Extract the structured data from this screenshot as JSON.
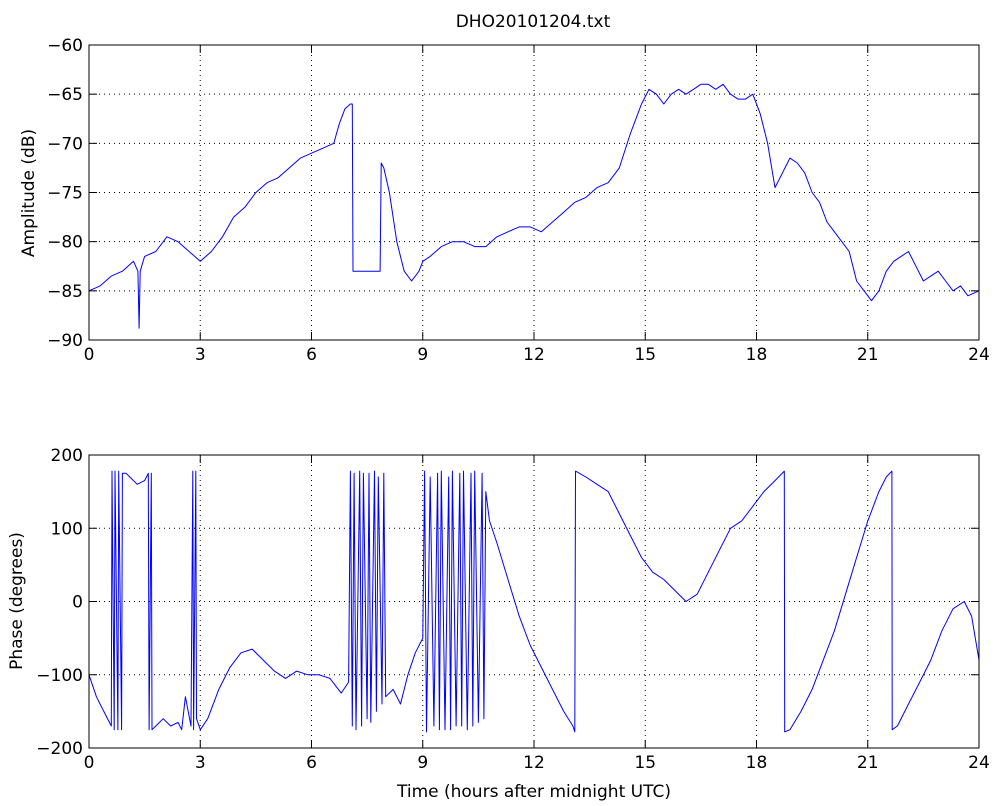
{
  "figure": {
    "title": "DHO20101204.txt",
    "colors": {
      "trace": "#0000ff",
      "axes": "#000000",
      "background": "#ffffff"
    }
  },
  "chart_data": [
    {
      "type": "line",
      "title": "DHO20101204.txt",
      "xlabel": "",
      "ylabel": "Amplitude (dB)",
      "xlim": [
        0,
        24
      ],
      "ylim": [
        -90,
        -60
      ],
      "xticks": [
        0,
        3,
        6,
        9,
        12,
        15,
        18,
        21,
        24
      ],
      "yticks": [
        -90,
        -85,
        -80,
        -75,
        -70,
        -65,
        -60
      ],
      "grid": true,
      "series": [
        {
          "color": "#0000ff",
          "x": [
            0,
            0.3,
            0.6,
            0.9,
            1.2,
            1.32,
            1.35,
            1.38,
            1.5,
            1.8,
            2.1,
            2.4,
            2.7,
            3.0,
            3.3,
            3.6,
            3.9,
            4.2,
            4.5,
            4.8,
            5.1,
            5.4,
            5.7,
            6.0,
            6.3,
            6.6,
            6.75,
            6.9,
            7.05,
            7.1,
            7.12,
            7.3,
            7.6,
            7.85,
            7.88,
            7.95,
            8.1,
            8.3,
            8.5,
            8.7,
            8.9,
            9.0,
            9.2,
            9.5,
            9.8,
            10.1,
            10.4,
            10.7,
            11.0,
            11.3,
            11.6,
            11.9,
            12.2,
            12.5,
            12.8,
            13.1,
            13.4,
            13.7,
            14.0,
            14.3,
            14.6,
            14.9,
            15.1,
            15.3,
            15.5,
            15.7,
            15.9,
            16.1,
            16.3,
            16.5,
            16.7,
            16.9,
            17.1,
            17.3,
            17.5,
            17.7,
            17.9,
            18.1,
            18.3,
            18.5,
            18.7,
            18.9,
            19.1,
            19.3,
            19.5,
            19.7,
            19.9,
            20.1,
            20.3,
            20.5,
            20.7,
            20.9,
            21.1,
            21.3,
            21.5,
            21.7,
            21.9,
            22.1,
            22.3,
            22.5,
            22.7,
            22.9,
            23.1,
            23.3,
            23.5,
            23.7,
            24.0
          ],
          "values": [
            -85,
            -84.5,
            -83.5,
            -83,
            -82,
            -83,
            -88.8,
            -83,
            -81.5,
            -81,
            -79.5,
            -80,
            -81,
            -82,
            -81,
            -79.5,
            -77.5,
            -76.5,
            -75,
            -74,
            -73.5,
            -72.5,
            -71.5,
            -71,
            -70.5,
            -70,
            -68,
            -66.5,
            -66,
            -66,
            -83,
            -83,
            -83,
            -83,
            -72,
            -72.5,
            -75,
            -80,
            -83,
            -84,
            -83,
            -82,
            -81.5,
            -80.5,
            -80,
            -80,
            -80.5,
            -80.5,
            -79.5,
            -79,
            -78.5,
            -78.5,
            -79,
            -78,
            -77,
            -76,
            -75.5,
            -74.5,
            -74,
            -72.5,
            -69,
            -66,
            -64.5,
            -65,
            -66,
            -65,
            -64.5,
            -65,
            -64.5,
            -64,
            -64,
            -64.5,
            -64,
            -65,
            -65.5,
            -65.5,
            -65,
            -67,
            -70,
            -74.5,
            -73,
            -71.5,
            -72,
            -73,
            -75,
            -76,
            -78,
            -79,
            -80,
            -81,
            -84,
            -85,
            -86,
            -85,
            -83,
            -82,
            -81.5,
            -81,
            -82.5,
            -84,
            -83.5,
            -83,
            -84,
            -85,
            -84.5,
            -85.5,
            -85
          ]
        }
      ]
    },
    {
      "type": "line",
      "title": "",
      "xlabel": "Time (hours after midnight UTC)",
      "ylabel": "Phase (degrees)",
      "xlim": [
        0,
        24
      ],
      "ylim": [
        -200,
        200
      ],
      "xticks": [
        0,
        3,
        6,
        9,
        12,
        15,
        18,
        21,
        24
      ],
      "yticks": [
        -200,
        -100,
        0,
        100,
        200
      ],
      "grid": true,
      "series": [
        {
          "color": "#0000ff",
          "x": [
            0,
            0.2,
            0.4,
            0.6,
            0.62,
            0.68,
            0.7,
            0.78,
            0.8,
            0.88,
            0.9,
            1.0,
            1.1,
            1.3,
            1.5,
            1.6,
            1.62,
            1.68,
            1.7,
            1.8,
            2.0,
            2.2,
            2.4,
            2.5,
            2.6,
            2.75,
            2.8,
            2.82,
            2.88,
            2.9,
            3.0,
            3.2,
            3.5,
            3.8,
            4.1,
            4.4,
            4.7,
            5.0,
            5.3,
            5.6,
            5.9,
            6.2,
            6.5,
            6.8,
            7.0,
            7.05,
            7.1,
            7.15,
            7.2,
            7.3,
            7.35,
            7.4,
            7.5,
            7.55,
            7.6,
            7.7,
            7.75,
            7.8,
            7.9,
            7.95,
            8.0,
            8.2,
            8.4,
            8.6,
            8.8,
            9.0,
            9.05,
            9.1,
            9.2,
            9.3,
            9.4,
            9.45,
            9.5,
            9.6,
            9.7,
            9.75,
            9.8,
            9.9,
            10.0,
            10.05,
            10.1,
            10.2,
            10.3,
            10.35,
            10.4,
            10.5,
            10.6,
            10.65,
            10.7,
            10.8,
            11.0,
            11.3,
            11.6,
            11.9,
            12.2,
            12.5,
            12.8,
            13.05,
            13.1,
            13.12,
            13.4,
            13.7,
            14.0,
            14.3,
            14.6,
            14.9,
            15.2,
            15.5,
            15.8,
            16.1,
            16.4,
            16.7,
            17.0,
            17.3,
            17.6,
            17.9,
            18.2,
            18.5,
            18.75,
            18.76,
            18.9,
            19.2,
            19.5,
            19.8,
            20.1,
            20.4,
            20.7,
            21.0,
            21.3,
            21.5,
            21.65,
            21.66,
            21.8,
            22.1,
            22.4,
            22.7,
            23.0,
            23.3,
            23.6,
            23.8,
            23.9,
            24.0
          ],
          "values": [
            -100,
            -130,
            -150,
            -170,
            178,
            -175,
            178,
            -175,
            178,
            -175,
            175,
            175,
            170,
            160,
            165,
            175,
            -175,
            175,
            -175,
            -170,
            -160,
            -170,
            -165,
            -175,
            -130,
            -170,
            178,
            -175,
            178,
            -160,
            -175,
            -160,
            -120,
            -90,
            -70,
            -65,
            -80,
            -95,
            -105,
            -95,
            -100,
            -100,
            -105,
            -125,
            -110,
            178,
            -170,
            175,
            -175,
            178,
            -170,
            175,
            -160,
            175,
            -165,
            178,
            -150,
            170,
            -140,
            175,
            -130,
            -120,
            -140,
            -100,
            -70,
            -50,
            178,
            -178,
            170,
            -170,
            175,
            -175,
            178,
            -175,
            170,
            -175,
            178,
            -170,
            175,
            -170,
            178,
            -175,
            175,
            -170,
            178,
            -165,
            175,
            -160,
            150,
            110,
            80,
            30,
            -20,
            -60,
            -90,
            -120,
            -150,
            -170,
            -178,
            178,
            170,
            160,
            150,
            120,
            90,
            60,
            40,
            30,
            15,
            0,
            10,
            40,
            70,
            100,
            110,
            130,
            150,
            165,
            178,
            -178,
            -175,
            -150,
            -120,
            -80,
            -40,
            10,
            60,
            110,
            150,
            170,
            178,
            -175,
            -170,
            -140,
            -110,
            -80,
            -40,
            -10,
            0,
            -20,
            -50,
            -80
          ]
        }
      ]
    }
  ]
}
